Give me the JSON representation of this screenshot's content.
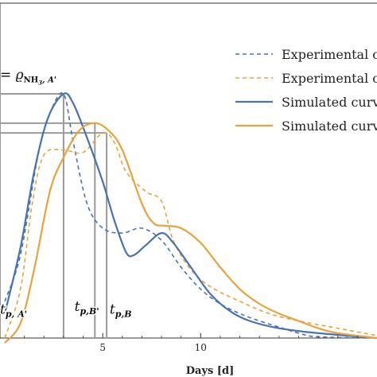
{
  "chart_data": {
    "type": "line",
    "xlabel": "Days [d]",
    "ylabel": "",
    "xlim": [
      0,
      19
    ],
    "x_ticks": [
      5,
      10
    ],
    "grid": false,
    "legend_position": "top-right",
    "series": [
      {
        "name": "Experimental c",
        "style": "dashed",
        "color": "#4a72b0",
        "points": [
          [
            0,
            0.15
          ],
          [
            0.8,
            0.34
          ],
          [
            1.7,
            0.75
          ],
          [
            2.3,
            0.92
          ],
          [
            3.0,
            1.0
          ],
          [
            3.5,
            0.8
          ],
          [
            4.2,
            0.55
          ],
          [
            5.0,
            0.45
          ],
          [
            6.0,
            0.43
          ],
          [
            7.0,
            0.45
          ],
          [
            8.0,
            0.4
          ],
          [
            9.0,
            0.29
          ],
          [
            10.0,
            0.2
          ],
          [
            11.0,
            0.14
          ],
          [
            12.0,
            0.1
          ],
          [
            13.0,
            0.07
          ],
          [
            14.0,
            0.045
          ],
          [
            15.0,
            0.02
          ],
          [
            16.0,
            0.005
          ],
          [
            19.0,
            0.0
          ]
        ]
      },
      {
        "name": "Experimental c",
        "style": "dashed",
        "color": "#e8a33a",
        "points": [
          [
            0,
            0.0
          ],
          [
            0.8,
            0.2
          ],
          [
            1.4,
            0.55
          ],
          [
            2.0,
            0.75
          ],
          [
            3.0,
            0.77
          ],
          [
            4.0,
            0.76
          ],
          [
            5.0,
            0.84
          ],
          [
            5.6,
            0.8
          ],
          [
            6.2,
            0.68
          ],
          [
            7.2,
            0.6
          ],
          [
            8.0,
            0.56
          ],
          [
            8.6,
            0.4
          ],
          [
            9.5,
            0.28
          ],
          [
            10.5,
            0.21
          ],
          [
            12.0,
            0.15
          ],
          [
            13.5,
            0.1
          ],
          [
            15.0,
            0.07
          ],
          [
            17.0,
            0.04
          ],
          [
            19.0,
            0.01
          ]
        ]
      },
      {
        "name": "Simulated curv",
        "style": "solid",
        "color": "#4a72b0",
        "points": [
          [
            0,
            0.1
          ],
          [
            0.8,
            0.37
          ],
          [
            1.5,
            0.68
          ],
          [
            2.2,
            0.9
          ],
          [
            3.0,
            1.0
          ],
          [
            3.5,
            0.96
          ],
          [
            4.2,
            0.82
          ],
          [
            5.0,
            0.64
          ],
          [
            5.6,
            0.48
          ],
          [
            6.2,
            0.35
          ],
          [
            6.6,
            0.34
          ],
          [
            7.2,
            0.38
          ],
          [
            8.0,
            0.43
          ],
          [
            8.6,
            0.39
          ],
          [
            9.5,
            0.29
          ],
          [
            10.5,
            0.18
          ],
          [
            11.5,
            0.11
          ],
          [
            12.5,
            0.07
          ],
          [
            14.0,
            0.04
          ],
          [
            16.0,
            0.02
          ],
          [
            19.0,
            0.0
          ]
        ]
      },
      {
        "name": "Simulated curv",
        "style": "solid",
        "color": "#e8a33a",
        "points": [
          [
            0,
            -0.02
          ],
          [
            0.8,
            0.06
          ],
          [
            1.5,
            0.28
          ],
          [
            2.3,
            0.6
          ],
          [
            3.0,
            0.74
          ],
          [
            3.8,
            0.85
          ],
          [
            4.6,
            0.88
          ],
          [
            5.3,
            0.85
          ],
          [
            6.0,
            0.77
          ],
          [
            7.0,
            0.55
          ],
          [
            7.6,
            0.47
          ],
          [
            8.2,
            0.46
          ],
          [
            9.0,
            0.45
          ],
          [
            10.0,
            0.39
          ],
          [
            11.0,
            0.29
          ],
          [
            12.0,
            0.2
          ],
          [
            13.0,
            0.14
          ],
          [
            14.0,
            0.1
          ],
          [
            15.0,
            0.07
          ],
          [
            16.0,
            0.04
          ],
          [
            17.0,
            0.02
          ],
          [
            19.0,
            0.0
          ]
        ]
      }
    ],
    "guide_lines": {
      "color": "#9a9a9a",
      "verticals": [
        {
          "x": 3.0,
          "top": 1.0
        },
        {
          "x": 4.6,
          "top": 0.88
        },
        {
          "x": 5.2,
          "top": 0.84
        }
      ],
      "horizontals": [
        {
          "y": 1.0,
          "x_end": 3.0
        },
        {
          "y": 0.88,
          "x_end": 4.6
        },
        {
          "y": 0.84,
          "x_end": 5.2
        }
      ]
    },
    "annotations": {
      "peak_label": {
        "prefix": "= ϱ",
        "sub": "NH",
        "sub2": "3",
        "suffix": ", A'",
        "at": [
          0.0,
          1.06
        ]
      },
      "t_labels": [
        {
          "main": "t",
          "sub": "p, A'",
          "at": [
            0.0,
            0.1
          ]
        },
        {
          "main": "t",
          "sub": "p,B'",
          "at": [
            3.8,
            0.11
          ]
        },
        {
          "main": "t",
          "sub": "p,B",
          "at": [
            5.6,
            0.1
          ]
        }
      ]
    }
  }
}
